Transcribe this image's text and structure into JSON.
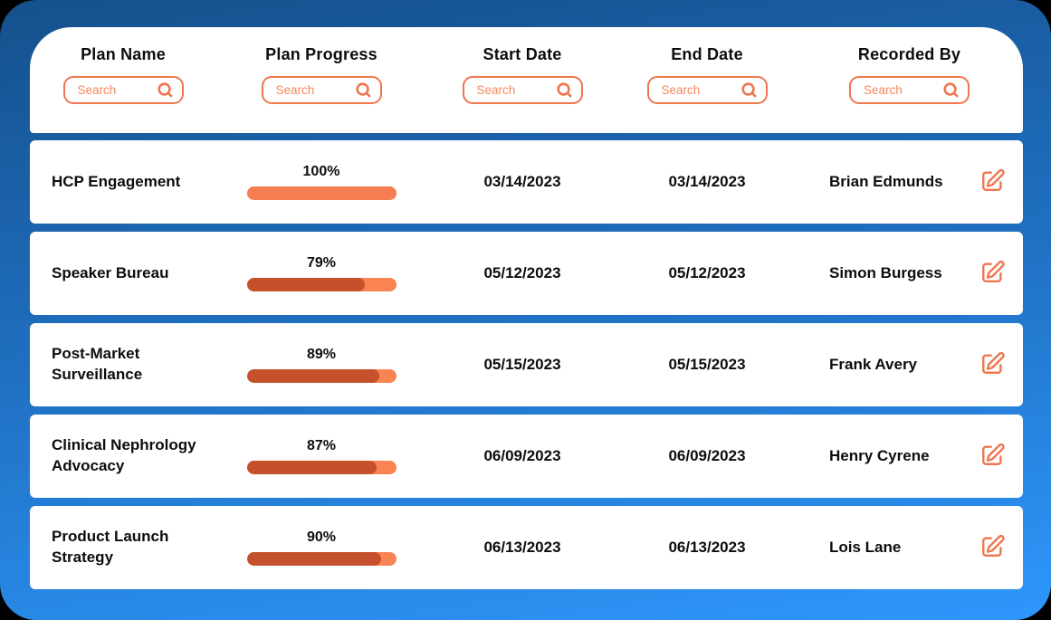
{
  "colors": {
    "canvas_top": "#15508C",
    "canvas_bottom": "#2E97FC",
    "accent_orange": "#F0764F",
    "placeholder_orange": "#F4875F",
    "bar_track": "#F98352",
    "bar_fill": "#C4512B",
    "bar_full": "#F57E53"
  },
  "icons": {
    "search": "magnifying-glass",
    "edit": "pencil-in-square"
  },
  "header": {
    "columns": [
      {
        "label": "Plan Name",
        "search_placeholder": "Search"
      },
      {
        "label": "Plan Progress",
        "search_placeholder": "Search"
      },
      {
        "label": "Start Date",
        "search_placeholder": "Search"
      },
      {
        "label": "End Date",
        "search_placeholder": "Search"
      },
      {
        "label": "Recorded By",
        "search_placeholder": "Search"
      }
    ]
  },
  "rows": [
    {
      "name": "HCP Engagement",
      "progress_pct": 100,
      "progress_label": "100%",
      "start_date": "03/14/2023",
      "end_date": "03/14/2023",
      "recorded_by": "Brian Edmunds"
    },
    {
      "name": "Speaker Bureau",
      "progress_pct": 79,
      "progress_label": "79%",
      "start_date": "05/12/2023",
      "end_date": "05/12/2023",
      "recorded_by": "Simon Burgess"
    },
    {
      "name": "Post-Market Surveillance",
      "progress_pct": 89,
      "progress_label": "89%",
      "start_date": "05/15/2023",
      "end_date": "05/15/2023",
      "recorded_by": "Frank Avery"
    },
    {
      "name": "Clinical Nephrology Advocacy",
      "progress_pct": 87,
      "progress_label": "87%",
      "start_date": "06/09/2023",
      "end_date": "06/09/2023",
      "recorded_by": "Henry Cyrene"
    },
    {
      "name": "Product Launch Strategy",
      "progress_pct": 90,
      "progress_label": "90%",
      "start_date": "06/13/2023",
      "end_date": "06/13/2023",
      "recorded_by": "Lois Lane"
    }
  ],
  "chart_data": {
    "type": "table",
    "columns": [
      "Plan Name",
      "Plan Progress",
      "Start Date",
      "End Date",
      "Recorded By"
    ],
    "progress_values": [
      100,
      79,
      89,
      87,
      90
    ]
  }
}
